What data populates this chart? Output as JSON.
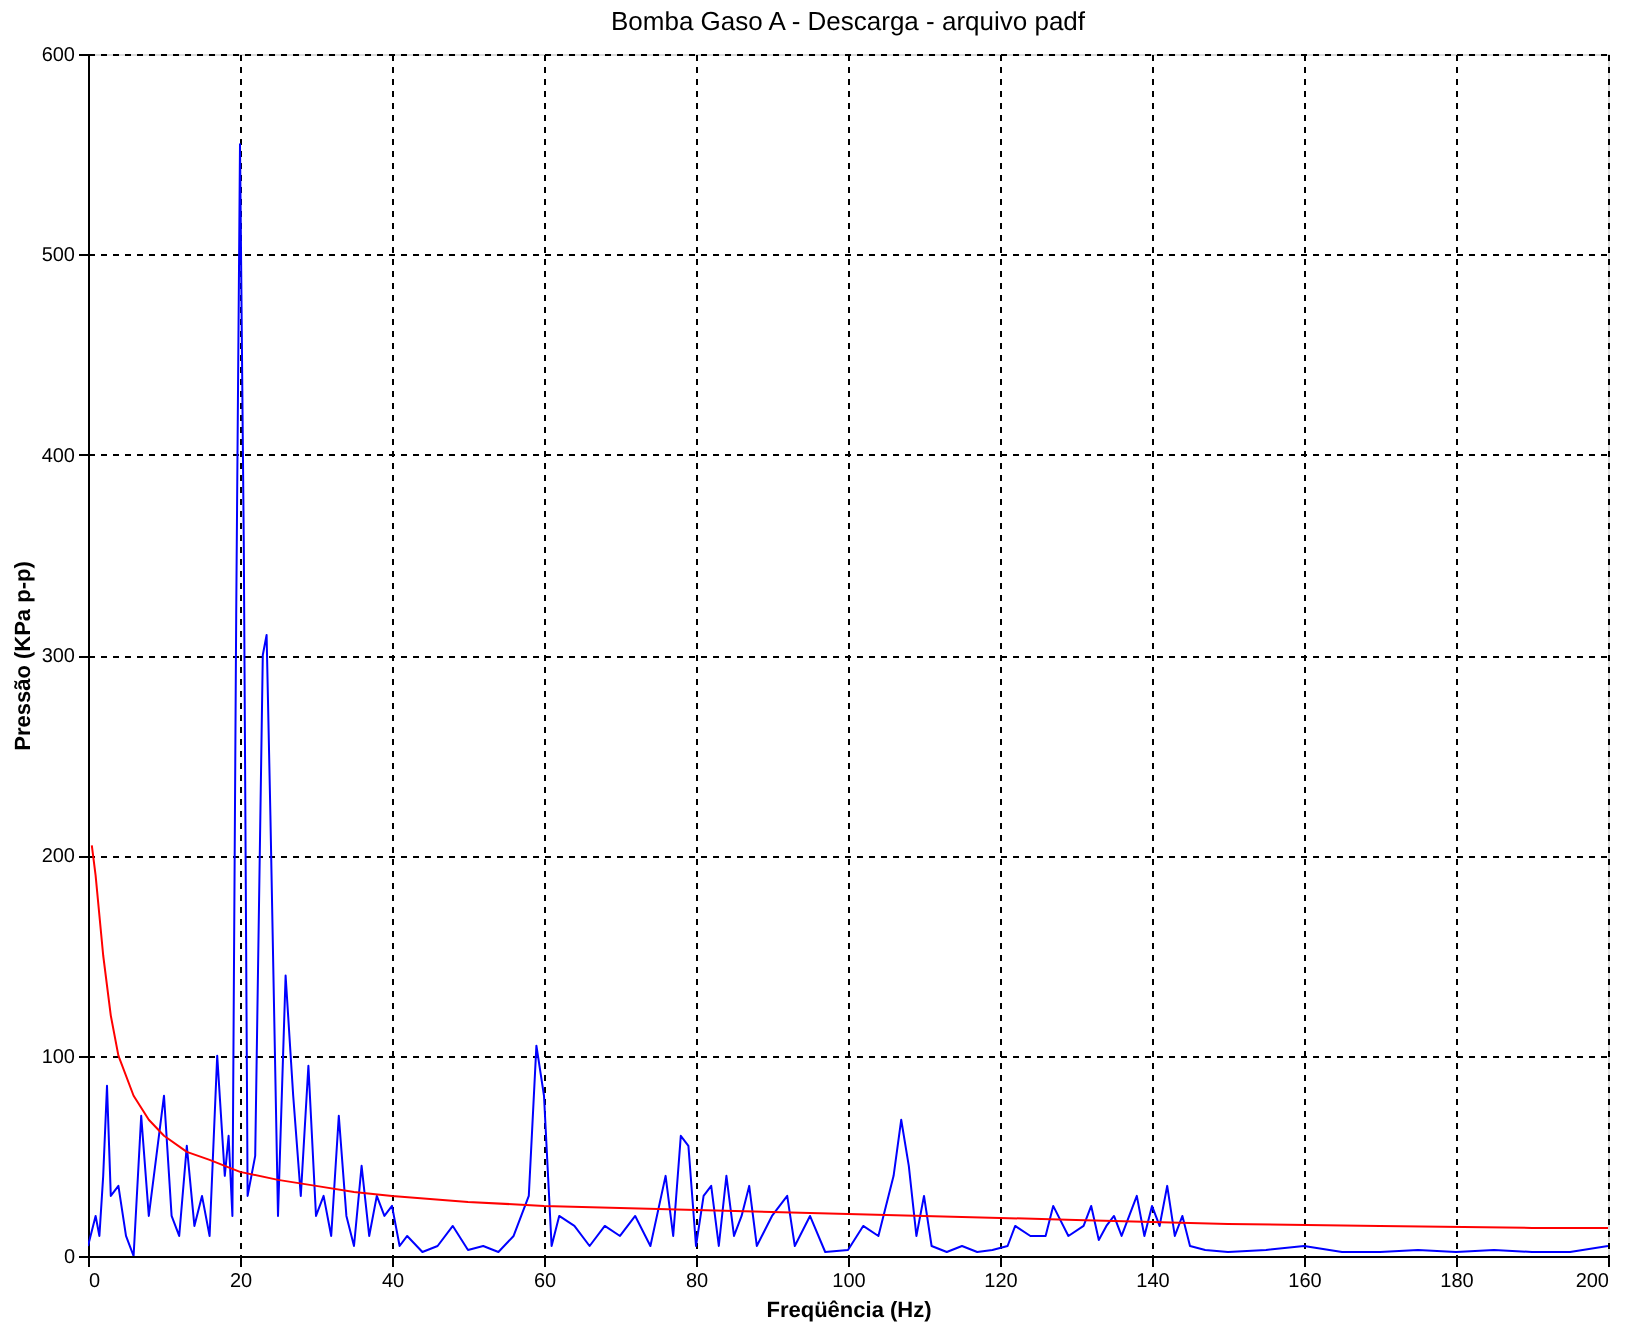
{
  "chart_data": {
    "type": "line",
    "title": "Bomba Gaso A - Descarga - arquivo padf",
    "xlabel": "Freqüência (Hz)",
    "ylabel": "Pressão (KPa p-p)",
    "xlim": [
      0,
      200
    ],
    "xticks": [
      0,
      20,
      40,
      60,
      80,
      100,
      120,
      140,
      160,
      180,
      200
    ],
    "ylim": [
      0,
      600
    ],
    "yticks": [
      0,
      100,
      200,
      300,
      400,
      500,
      600
    ],
    "grid": true,
    "line_style": "solid",
    "marker": "none",
    "series": [
      {
        "color": "#0000ff",
        "x": [
          0,
          1,
          1.5,
          2,
          2.5,
          3,
          4,
          5,
          6,
          7,
          8,
          9,
          10,
          11,
          12,
          13,
          14,
          15,
          16,
          17,
          18,
          18.5,
          19,
          19.5,
          20,
          20.5,
          21,
          22,
          23,
          23.5,
          24,
          25,
          26,
          27,
          28,
          29,
          30,
          31,
          32,
          33,
          34,
          35,
          36,
          37,
          38,
          39,
          40,
          41,
          42,
          44,
          46,
          48,
          50,
          52,
          54,
          56,
          58,
          59,
          60,
          61,
          62,
          64,
          66,
          68,
          70,
          72,
          74,
          76,
          77,
          78,
          79,
          80,
          81,
          82,
          83,
          84,
          85,
          86,
          87,
          88,
          90,
          92,
          93,
          95,
          97,
          100,
          102,
          104,
          106,
          107,
          108,
          109,
          110,
          111,
          113,
          115,
          117,
          119,
          121,
          122,
          124,
          126,
          127,
          129,
          131,
          132,
          133,
          134,
          135,
          136,
          137,
          138,
          139,
          140,
          141,
          142,
          143,
          144,
          145,
          147,
          150,
          155,
          160,
          165,
          170,
          175,
          180,
          185,
          190,
          195,
          200
        ],
        "values": [
          5,
          20,
          10,
          40,
          85,
          30,
          35,
          10,
          0,
          70,
          20,
          50,
          80,
          20,
          10,
          55,
          15,
          30,
          10,
          100,
          40,
          60,
          20,
          320,
          555,
          355,
          30,
          50,
          300,
          310,
          220,
          20,
          140,
          80,
          30,
          95,
          20,
          30,
          10,
          70,
          20,
          5,
          45,
          10,
          30,
          20,
          25,
          5,
          10,
          2,
          5,
          15,
          3,
          5,
          2,
          10,
          30,
          105,
          80,
          5,
          20,
          15,
          5,
          15,
          10,
          20,
          5,
          40,
          10,
          60,
          55,
          5,
          30,
          35,
          5,
          40,
          10,
          20,
          35,
          5,
          20,
          30,
          5,
          20,
          2,
          3,
          15,
          10,
          40,
          68,
          45,
          10,
          30,
          5,
          2,
          5,
          2,
          3,
          5,
          15,
          10,
          10,
          25,
          10,
          15,
          25,
          8,
          15,
          20,
          10,
          20,
          30,
          10,
          25,
          15,
          35,
          10,
          20,
          5,
          3,
          2,
          3,
          5,
          2,
          2,
          3,
          2,
          3,
          2,
          2,
          5
        ]
      },
      {
        "color": "#ff0000",
        "x": [
          0.5,
          1,
          2,
          3,
          4,
          6,
          8,
          10,
          13,
          16,
          20,
          25,
          30,
          35,
          40,
          50,
          60,
          70,
          80,
          90,
          100,
          110,
          120,
          130,
          140,
          150,
          170,
          190,
          200
        ],
        "values": [
          205,
          190,
          150,
          120,
          100,
          80,
          68,
          60,
          52,
          48,
          42,
          38,
          35,
          32,
          30,
          27,
          25,
          24,
          23,
          22,
          21,
          20,
          19,
          18,
          17,
          16,
          15,
          14,
          14
        ]
      }
    ]
  }
}
